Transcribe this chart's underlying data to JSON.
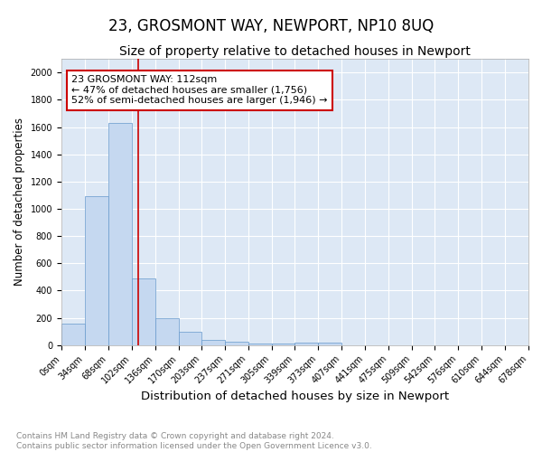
{
  "title": "23, GROSMONT WAY, NEWPORT, NP10 8UQ",
  "subtitle": "Size of property relative to detached houses in Newport",
  "xlabel": "Distribution of detached houses by size in Newport",
  "ylabel": "Number of detached properties",
  "bin_edges": [
    0,
    34,
    68,
    102,
    136,
    170,
    203,
    237,
    271,
    305,
    339,
    373,
    407,
    441,
    475,
    509,
    542,
    576,
    610,
    644,
    678
  ],
  "bar_heights": [
    160,
    1090,
    1630,
    490,
    200,
    100,
    40,
    25,
    15,
    15,
    20,
    20,
    0,
    0,
    0,
    0,
    0,
    0,
    0,
    0
  ],
  "bar_color": "#c5d8f0",
  "bar_edge_color": "#6699cc",
  "bg_color": "#dde8f5",
  "grid_color": "#ffffff",
  "red_line_x": 112,
  "annotation_text": "23 GROSMONT WAY: 112sqm\n← 47% of detached houses are smaller (1,756)\n52% of semi-detached houses are larger (1,946) →",
  "annotation_box_color": "#ffffff",
  "annotation_border_color": "#cc0000",
  "ylim": [
    0,
    2100
  ],
  "yticks": [
    0,
    200,
    400,
    600,
    800,
    1000,
    1200,
    1400,
    1600,
    1800,
    2000
  ],
  "footer_text": "Contains HM Land Registry data © Crown copyright and database right 2024.\nContains public sector information licensed under the Open Government Licence v3.0.",
  "title_fontsize": 12,
  "subtitle_fontsize": 10,
  "xlabel_fontsize": 9.5,
  "ylabel_fontsize": 8.5,
  "tick_fontsize": 7,
  "annotation_fontsize": 8,
  "footer_fontsize": 6.5
}
